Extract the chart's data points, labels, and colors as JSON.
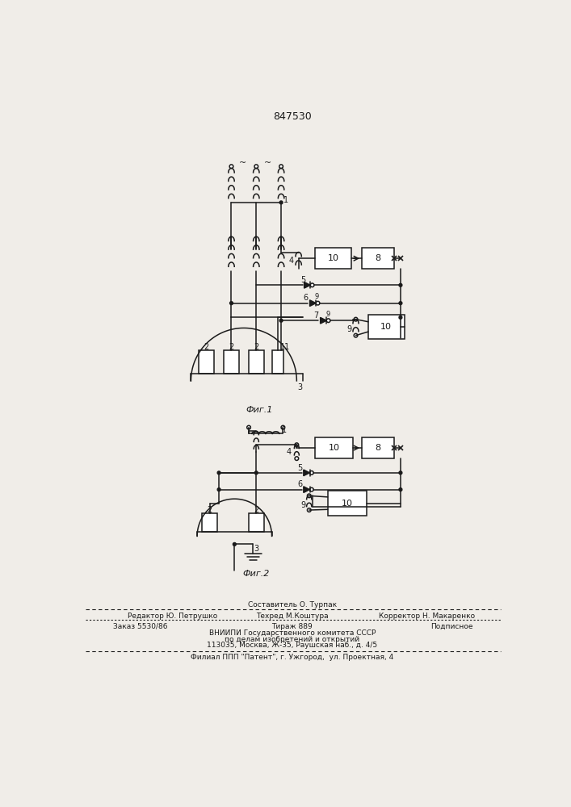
{
  "title": "847530",
  "fig1_label": "Фиг.1",
  "fig2_label": "Фиг.2",
  "background_color": "#f0ede8",
  "line_color": "#1a1a1a",
  "text_color": "#1a1a1a",
  "footer_line1": "Составитель О. Турпак",
  "footer_line2a": "Редактор Ю. Петрушко",
  "footer_line2b": "Техред М.Коштура",
  "footer_line2c": "Корректор Н. Макаренко",
  "footer_line3a": "Заказ 5530/86",
  "footer_line3b": "Тираж 889",
  "footer_line3c": "Подписное",
  "footer_line4": "ВНИИПИ Государственного комитета СССР",
  "footer_line5": "по делам изобретений и открытий",
  "footer_line6": "113035, Москва, Ж-35, Раушская наб., д. 4/5",
  "footer_line7": "Филиал ППП \"Патент\", г. Ужгород,  ул. Проектная, 4"
}
